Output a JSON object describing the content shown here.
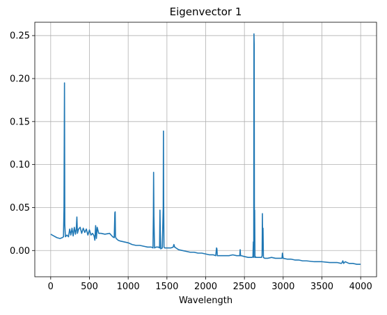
{
  "chart_data": {
    "type": "line",
    "title": "Eigenvector 1",
    "xlabel": "Wavelength",
    "ylabel": "",
    "xlim": [
      -205,
      4205
    ],
    "ylim": [
      -0.0305,
      0.2655
    ],
    "xticks": [
      0,
      500,
      1000,
      1500,
      2000,
      2500,
      3000,
      3500,
      4000
    ],
    "xtick_labels": [
      "0",
      "500",
      "1000",
      "1500",
      "2000",
      "2500",
      "3000",
      "3500",
      "4000"
    ],
    "yticks": [
      0.0,
      0.05,
      0.1,
      0.15,
      0.2,
      0.25
    ],
    "ytick_labels": [
      "0.00",
      "0.05",
      "0.10",
      "0.15",
      "0.20",
      "0.25"
    ],
    "grid": true,
    "line_color": "#1f77b4",
    "series": [
      {
        "x": [
          0,
          40,
          80,
          120,
          150,
          165,
          172,
          178,
          182,
          190,
          210,
          230,
          245,
          260,
          275,
          290,
          305,
          320,
          330,
          338,
          345,
          360,
          380,
          400,
          420,
          440,
          460,
          480,
          500,
          520,
          540,
          560,
          570,
          580,
          590,
          600,
          620,
          650,
          700,
          760,
          800,
          820,
          828,
          832,
          836,
          845,
          870,
          900,
          950,
          1000,
          1050,
          1100,
          1150,
          1200,
          1250,
          1300,
          1320,
          1325,
          1328,
          1332,
          1340,
          1360,
          1390,
          1405,
          1410,
          1415,
          1420,
          1440,
          1452,
          1455,
          1458,
          1462,
          1470,
          1500,
          1550,
          1580,
          1590,
          1600,
          1650,
          1700,
          1750,
          1800,
          1850,
          1900,
          1950,
          2000,
          2050,
          2100,
          2130,
          2140,
          2145,
          2150,
          2160,
          2200,
          2250,
          2300,
          2350,
          2400,
          2440,
          2445,
          2450,
          2460,
          2500,
          2550,
          2600,
          2610,
          2615,
          2620,
          2623,
          2626,
          2629,
          2632,
          2636,
          2640,
          2650,
          2680,
          2700,
          2720,
          2728,
          2732,
          2736,
          2740,
          2745,
          2760,
          2800,
          2850,
          2900,
          2950,
          2980,
          2985,
          2990,
          3000,
          3050,
          3100,
          3150,
          3200,
          3250,
          3300,
          3400,
          3500,
          3600,
          3700,
          3750,
          3760,
          3770,
          3780,
          3800,
          3850,
          3900,
          3950,
          4000
        ],
        "y": [
          0.019,
          0.017,
          0.015,
          0.014,
          0.015,
          0.016,
          0.05,
          0.195,
          0.03,
          0.016,
          0.018,
          0.016,
          0.025,
          0.018,
          0.026,
          0.017,
          0.027,
          0.019,
          0.025,
          0.039,
          0.02,
          0.025,
          0.027,
          0.02,
          0.026,
          0.021,
          0.025,
          0.018,
          0.024,
          0.018,
          0.02,
          0.017,
          0.012,
          0.029,
          0.014,
          0.027,
          0.02,
          0.02,
          0.019,
          0.02,
          0.016,
          0.015,
          0.044,
          0.045,
          0.016,
          0.014,
          0.012,
          0.011,
          0.01,
          0.009,
          0.007,
          0.006,
          0.006,
          0.005,
          0.004,
          0.004,
          0.003,
          0.04,
          0.091,
          0.04,
          0.003,
          0.004,
          0.004,
          0.003,
          0.047,
          0.02,
          0.002,
          0.003,
          0.05,
          0.139,
          0.06,
          0.004,
          0.003,
          0.003,
          0.003,
          0.004,
          0.007,
          0.004,
          0.001,
          0.0,
          -0.001,
          -0.002,
          -0.002,
          -0.003,
          -0.003,
          -0.004,
          -0.005,
          -0.005,
          -0.006,
          0.003,
          0.002,
          -0.006,
          -0.006,
          -0.006,
          -0.006,
          -0.006,
          -0.005,
          -0.006,
          -0.006,
          0.001,
          -0.006,
          -0.006,
          -0.007,
          -0.008,
          -0.008,
          -0.007,
          0.01,
          -0.008,
          0.252,
          0.24,
          0.02,
          0.047,
          -0.008,
          -0.007,
          -0.008,
          -0.008,
          -0.008,
          -0.008,
          -0.006,
          0.043,
          0.0,
          0.026,
          -0.008,
          -0.009,
          -0.009,
          -0.008,
          -0.009,
          -0.009,
          -0.009,
          -0.009,
          -0.003,
          -0.009,
          -0.01,
          -0.01,
          -0.011,
          -0.011,
          -0.012,
          -0.012,
          -0.013,
          -0.013,
          -0.014,
          -0.014,
          -0.015,
          -0.014,
          -0.012,
          -0.015,
          -0.013,
          -0.015,
          -0.015,
          -0.016,
          -0.016
        ]
      }
    ]
  }
}
